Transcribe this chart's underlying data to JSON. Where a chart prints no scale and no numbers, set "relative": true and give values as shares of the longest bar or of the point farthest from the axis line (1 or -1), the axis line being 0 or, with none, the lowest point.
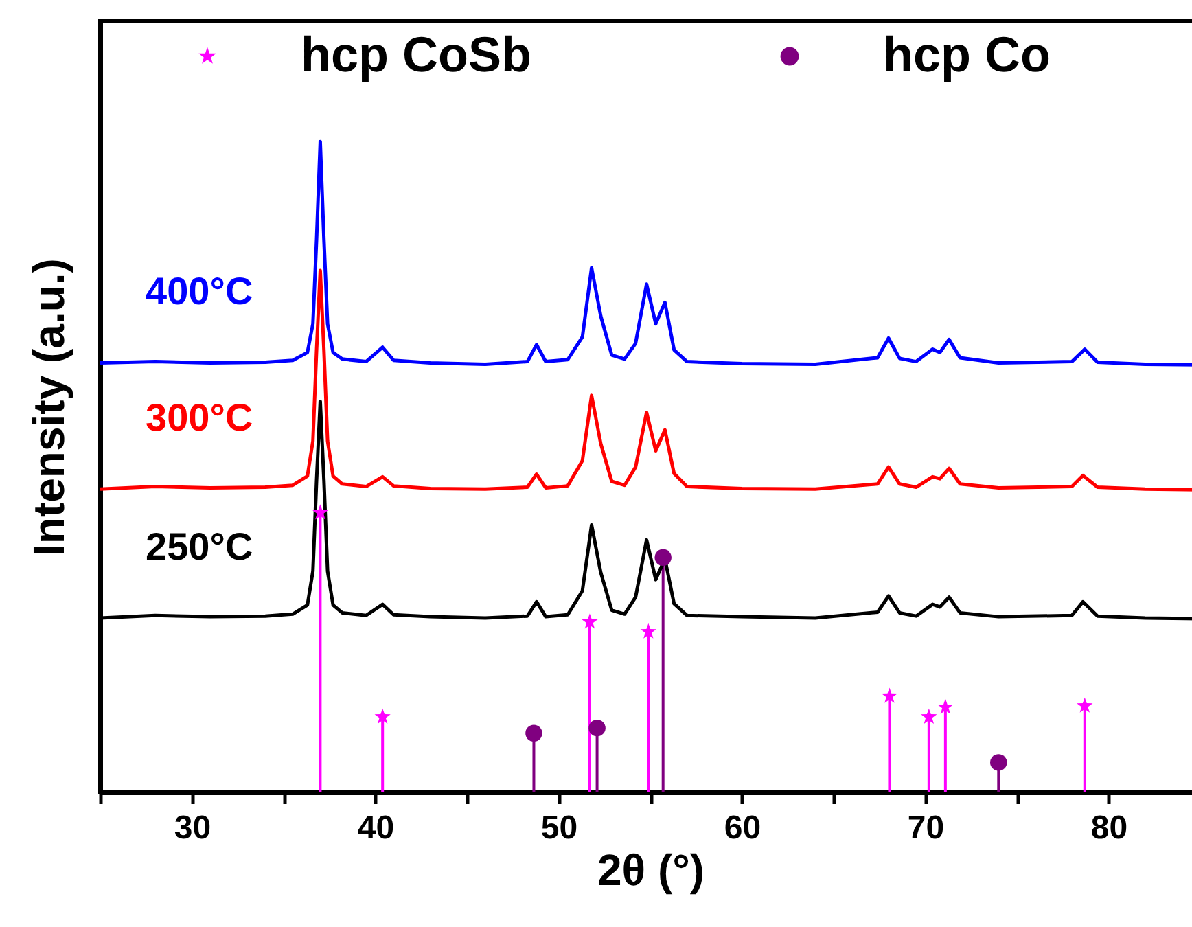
{
  "chart_data": {
    "type": "line",
    "relative": true,
    "xlabel": "2θ (°)",
    "ylabel": "Intensity (a.u.)",
    "xlim": [
      25,
      85
    ],
    "xticks": [
      {
        "value": 25,
        "label": null
      },
      30,
      {
        "value": 35,
        "label": null
      },
      40,
      {
        "value": 45,
        "label": null
      },
      50,
      {
        "value": 55,
        "label": null
      },
      60,
      {
        "value": 65,
        "label": null
      },
      70,
      {
        "value": 75,
        "label": null
      },
      80,
      {
        "value": 85,
        "label": null
      }
    ],
    "grid": false,
    "legend": "top",
    "tick_labels": "x",
    "series": [
      {
        "name": "400°C",
        "color": "#0000ff",
        "x": [
          25,
          28,
          31,
          34,
          35.5,
          36.3,
          36.6,
          36.8,
          37.0,
          37.2,
          37.4,
          37.7,
          38.2,
          39.5,
          40.4,
          41,
          43,
          46,
          48.3,
          48.8,
          49.3,
          50.5,
          51.3,
          51.8,
          52.3,
          52.9,
          53.6,
          54.2,
          54.8,
          55.3,
          55.8,
          56.3,
          57,
          60,
          64,
          67.4,
          68.0,
          68.6,
          69.5,
          70.4,
          70.8,
          71.3,
          71.9,
          74,
          78.0,
          78.7,
          79.4,
          82,
          85
        ],
        "values": [
          0.66,
          0.662,
          0.66,
          0.661,
          0.664,
          0.676,
          0.72,
          0.85,
          1.0,
          0.85,
          0.72,
          0.676,
          0.666,
          0.662,
          0.684,
          0.664,
          0.66,
          0.658,
          0.662,
          0.688,
          0.662,
          0.665,
          0.7,
          0.806,
          0.732,
          0.672,
          0.666,
          0.69,
          0.781,
          0.72,
          0.753,
          0.68,
          0.662,
          0.659,
          0.658,
          0.668,
          0.698,
          0.667,
          0.662,
          0.681,
          0.676,
          0.696,
          0.668,
          0.66,
          0.662,
          0.681,
          0.661,
          0.658,
          0.657
        ]
      },
      {
        "name": "300°C",
        "color": "#ff0000",
        "x": [
          25,
          28,
          31,
          34,
          35.5,
          36.3,
          36.6,
          36.8,
          37.0,
          37.2,
          37.4,
          37.7,
          38.2,
          39.5,
          40.4,
          41,
          43,
          46,
          48.3,
          48.8,
          49.3,
          50.5,
          51.3,
          51.8,
          52.3,
          52.9,
          53.6,
          54.2,
          54.8,
          55.3,
          55.8,
          56.3,
          57,
          60,
          64,
          67.4,
          68.0,
          68.6,
          69.5,
          70.4,
          70.8,
          71.3,
          71.9,
          74,
          78.0,
          78.6,
          79.4,
          82,
          85
        ],
        "values": [
          0.466,
          0.47,
          0.468,
          0.469,
          0.472,
          0.486,
          0.54,
          0.68,
          0.802,
          0.68,
          0.54,
          0.486,
          0.474,
          0.47,
          0.485,
          0.471,
          0.467,
          0.466,
          0.469,
          0.489,
          0.468,
          0.471,
          0.51,
          0.61,
          0.536,
          0.478,
          0.472,
          0.5,
          0.584,
          0.525,
          0.557,
          0.49,
          0.47,
          0.467,
          0.466,
          0.474,
          0.5,
          0.474,
          0.469,
          0.485,
          0.482,
          0.498,
          0.474,
          0.468,
          0.47,
          0.487,
          0.469,
          0.466,
          0.465
        ]
      },
      {
        "name": "250°C",
        "color": "#000000",
        "x": [
          25,
          28,
          31,
          34,
          35.5,
          36.3,
          36.6,
          36.8,
          37.0,
          37.2,
          37.4,
          37.7,
          38.2,
          39.5,
          40.4,
          41,
          43,
          46,
          48.3,
          48.8,
          49.3,
          50.5,
          51.3,
          51.8,
          52.3,
          52.9,
          53.6,
          54.2,
          54.8,
          55.3,
          55.8,
          56.3,
          57,
          60,
          64,
          67.4,
          68.0,
          68.6,
          69.5,
          70.4,
          70.8,
          71.3,
          71.9,
          74,
          78.0,
          78.6,
          79.4,
          82,
          85
        ],
        "values": [
          0.268,
          0.272,
          0.27,
          0.271,
          0.274,
          0.288,
          0.34,
          0.48,
          0.601,
          0.48,
          0.34,
          0.288,
          0.276,
          0.272,
          0.289,
          0.273,
          0.27,
          0.268,
          0.271,
          0.293,
          0.27,
          0.273,
          0.31,
          0.411,
          0.338,
          0.28,
          0.274,
          0.3,
          0.388,
          0.327,
          0.359,
          0.29,
          0.272,
          0.27,
          0.268,
          0.277,
          0.302,
          0.276,
          0.271,
          0.289,
          0.285,
          0.3,
          0.276,
          0.27,
          0.272,
          0.293,
          0.271,
          0.268,
          0.267
        ]
      },
      {
        "name": "hcp CoSb",
        "type": "lollipop",
        "marker": "star",
        "color": "#ff00ff",
        "x": [
          37.0,
          40.4,
          51.7,
          54.9,
          68.05,
          70.2,
          71.1,
          78.7
        ],
        "values": [
          0.43,
          0.116,
          0.262,
          0.247,
          0.148,
          0.116,
          0.131,
          0.133
        ]
      },
      {
        "name": "hcp Co",
        "type": "lollipop",
        "marker": "circle",
        "color": "#800080",
        "x": [
          48.65,
          52.1,
          55.7,
          74.0
        ],
        "values": [
          0.091,
          0.099,
          0.361,
          0.046
        ]
      }
    ]
  }
}
